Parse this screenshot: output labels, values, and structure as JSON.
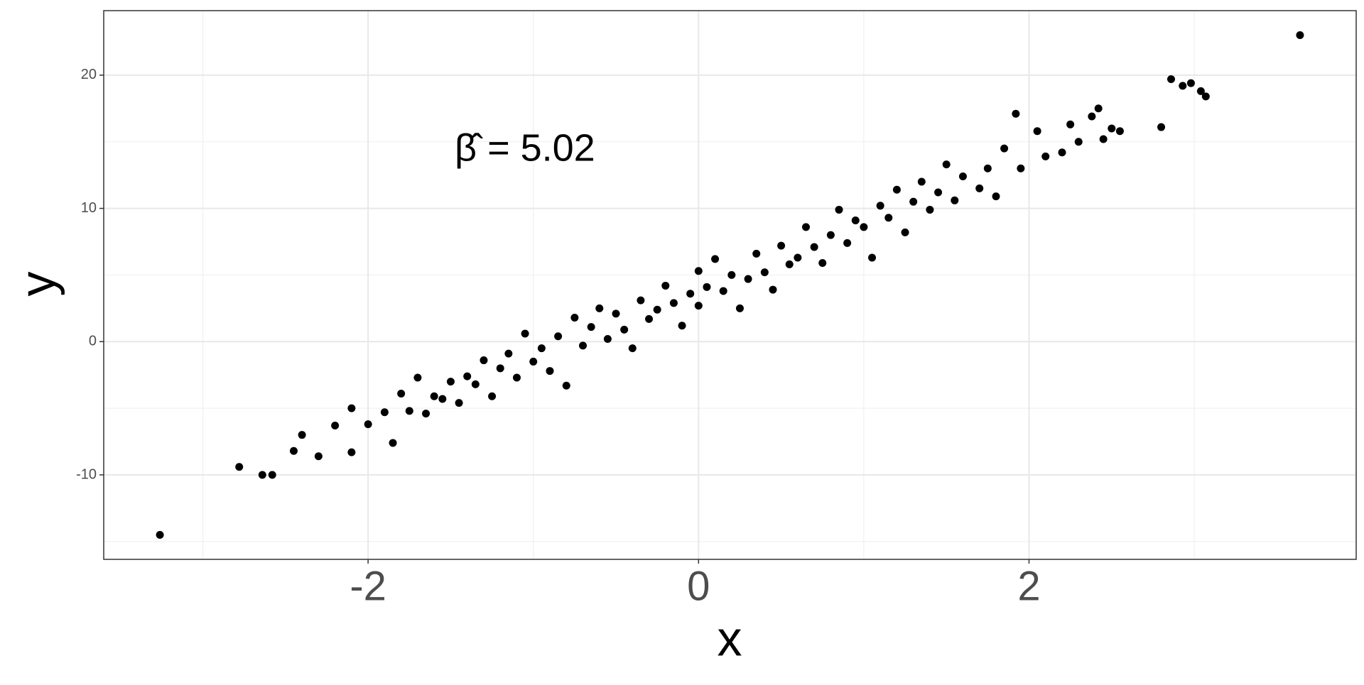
{
  "chart_data": {
    "type": "scatter",
    "x_label": "x",
    "y_label": "y",
    "annotation": "β̂ = 5.02",
    "color": "#000000",
    "grid": true,
    "xlim": [
      -3.6,
      3.98
    ],
    "ylim": [
      -16.34,
      24.84
    ],
    "xticks": [
      -2,
      0,
      2
    ],
    "yticks": [
      -10,
      0,
      10,
      20
    ],
    "x_minor_grid": [
      -3,
      -1,
      1,
      3
    ],
    "y_minor_grid": [
      -15,
      -5,
      5,
      15
    ],
    "x": [
      -3.26,
      -2.78,
      -2.64,
      -2.58,
      -2.45,
      -2.4,
      -2.3,
      -2.2,
      -2.1,
      -2.1,
      -2.0,
      -1.9,
      -1.85,
      -1.8,
      -1.75,
      -1.7,
      -1.65,
      -1.6,
      -1.55,
      -1.5,
      -1.45,
      -1.4,
      -1.35,
      -1.3,
      -1.25,
      -1.2,
      -1.15,
      -1.1,
      -1.05,
      -1.0,
      -0.95,
      -0.9,
      -0.85,
      -0.8,
      -0.75,
      -0.7,
      -0.65,
      -0.6,
      -0.55,
      -0.5,
      -0.45,
      -0.4,
      -0.35,
      -0.3,
      -0.25,
      -0.2,
      -0.15,
      -0.1,
      -0.05,
      0.0,
      0.0,
      0.05,
      0.1,
      0.15,
      0.2,
      0.25,
      0.3,
      0.35,
      0.4,
      0.45,
      0.5,
      0.55,
      0.6,
      0.65,
      0.7,
      0.75,
      0.8,
      0.85,
      0.9,
      0.95,
      1.0,
      1.05,
      1.1,
      1.15,
      1.2,
      1.25,
      1.3,
      1.35,
      1.4,
      1.45,
      1.5,
      1.55,
      1.6,
      1.7,
      1.75,
      1.8,
      1.85,
      1.92,
      1.95,
      2.05,
      2.1,
      2.2,
      2.25,
      2.3,
      2.38,
      2.42,
      2.45,
      2.5,
      2.55,
      2.8,
      2.86,
      2.93,
      2.98,
      3.04,
      3.07,
      3.64
    ],
    "y": [
      -14.5,
      -9.4,
      -10.0,
      -10.0,
      -8.2,
      -7.0,
      -8.6,
      -6.3,
      -5.0,
      -8.3,
      -6.2,
      -5.3,
      -7.6,
      -3.9,
      -5.2,
      -2.7,
      -5.4,
      -4.1,
      -4.3,
      -3.0,
      -4.6,
      -2.6,
      -3.2,
      -1.4,
      -4.1,
      -2.0,
      -0.9,
      -2.7,
      0.6,
      -1.5,
      -0.5,
      -2.2,
      0.4,
      -3.3,
      1.8,
      -0.3,
      1.1,
      2.5,
      0.2,
      2.1,
      0.9,
      -0.5,
      3.1,
      1.7,
      2.4,
      4.2,
      2.9,
      1.2,
      3.6,
      5.3,
      2.7,
      4.1,
      6.2,
      3.8,
      5.0,
      2.5,
      4.7,
      6.6,
      5.2,
      3.9,
      7.2,
      5.8,
      6.3,
      8.6,
      7.1,
      5.9,
      8.0,
      9.9,
      7.4,
      9.1,
      8.6,
      6.3,
      10.2,
      9.3,
      11.4,
      8.2,
      10.5,
      12.0,
      9.9,
      11.2,
      13.3,
      10.6,
      12.4,
      11.5,
      13.0,
      10.9,
      14.5,
      17.1,
      13.0,
      15.8,
      13.9,
      14.2,
      16.3,
      15.0,
      16.9,
      17.5,
      15.2,
      16.0,
      15.8,
      16.1,
      19.7,
      19.2,
      19.4,
      18.8,
      18.4,
      23.0
    ]
  }
}
